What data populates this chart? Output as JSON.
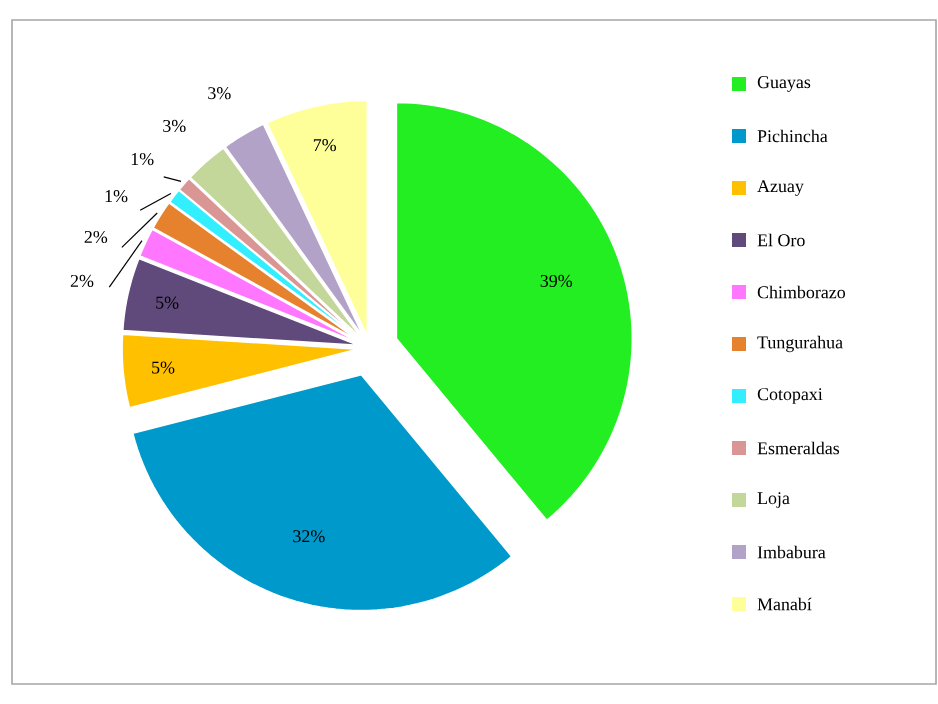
{
  "chart_data": {
    "type": "pie",
    "categories": [
      "Guayas",
      "Pichincha",
      "Azuay",
      "El Oro",
      "Chimborazo",
      "Tungurahua",
      "Cotopaxi",
      "Esmeraldas",
      "Loja",
      "Imbabura",
      "Manabí"
    ],
    "values": [
      39,
      32,
      5,
      5,
      2,
      2,
      1,
      1,
      3,
      3,
      7
    ],
    "value_labels": [
      "39%",
      "32%",
      "5%",
      "5%",
      "2%",
      "2%",
      "1%",
      "1%",
      "3%",
      "3%",
      "7%"
    ],
    "colors": [
      "#22ee22",
      "#0099cc",
      "#ffc000",
      "#604a7b",
      "#ff77ff",
      "#e6822e",
      "#33eeff",
      "#d99694",
      "#c4d79b",
      "#b3a2c7",
      "#ffff99"
    ],
    "legend": "right"
  }
}
